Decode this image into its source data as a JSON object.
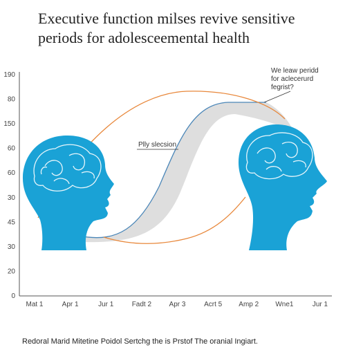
{
  "title": {
    "line1": "Executive function milses revive sensitive",
    "line2": "periods for adolesceemental health"
  },
  "y_axis_labels": [
    "190",
    "80",
    "150",
    "60",
    "60",
    "30",
    "45",
    "30",
    "20",
    "0"
  ],
  "x_axis_labels": [
    "Mat 1",
    "Apr 1",
    "Jur 1",
    "Fadt 2",
    "Apr 3",
    "Acrt 5",
    "Amp 2",
    "Wne1",
    "Jur 1"
  ],
  "annotations": {
    "window": [
      "We leaw peridd",
      "for aclecerurd",
      "fegrist?"
    ],
    "selection": "Plly slecsion"
  },
  "caption": "Redoral Marid Mitetine Poidol Sertchg the is Prstof The oranial Ingiart."
}
